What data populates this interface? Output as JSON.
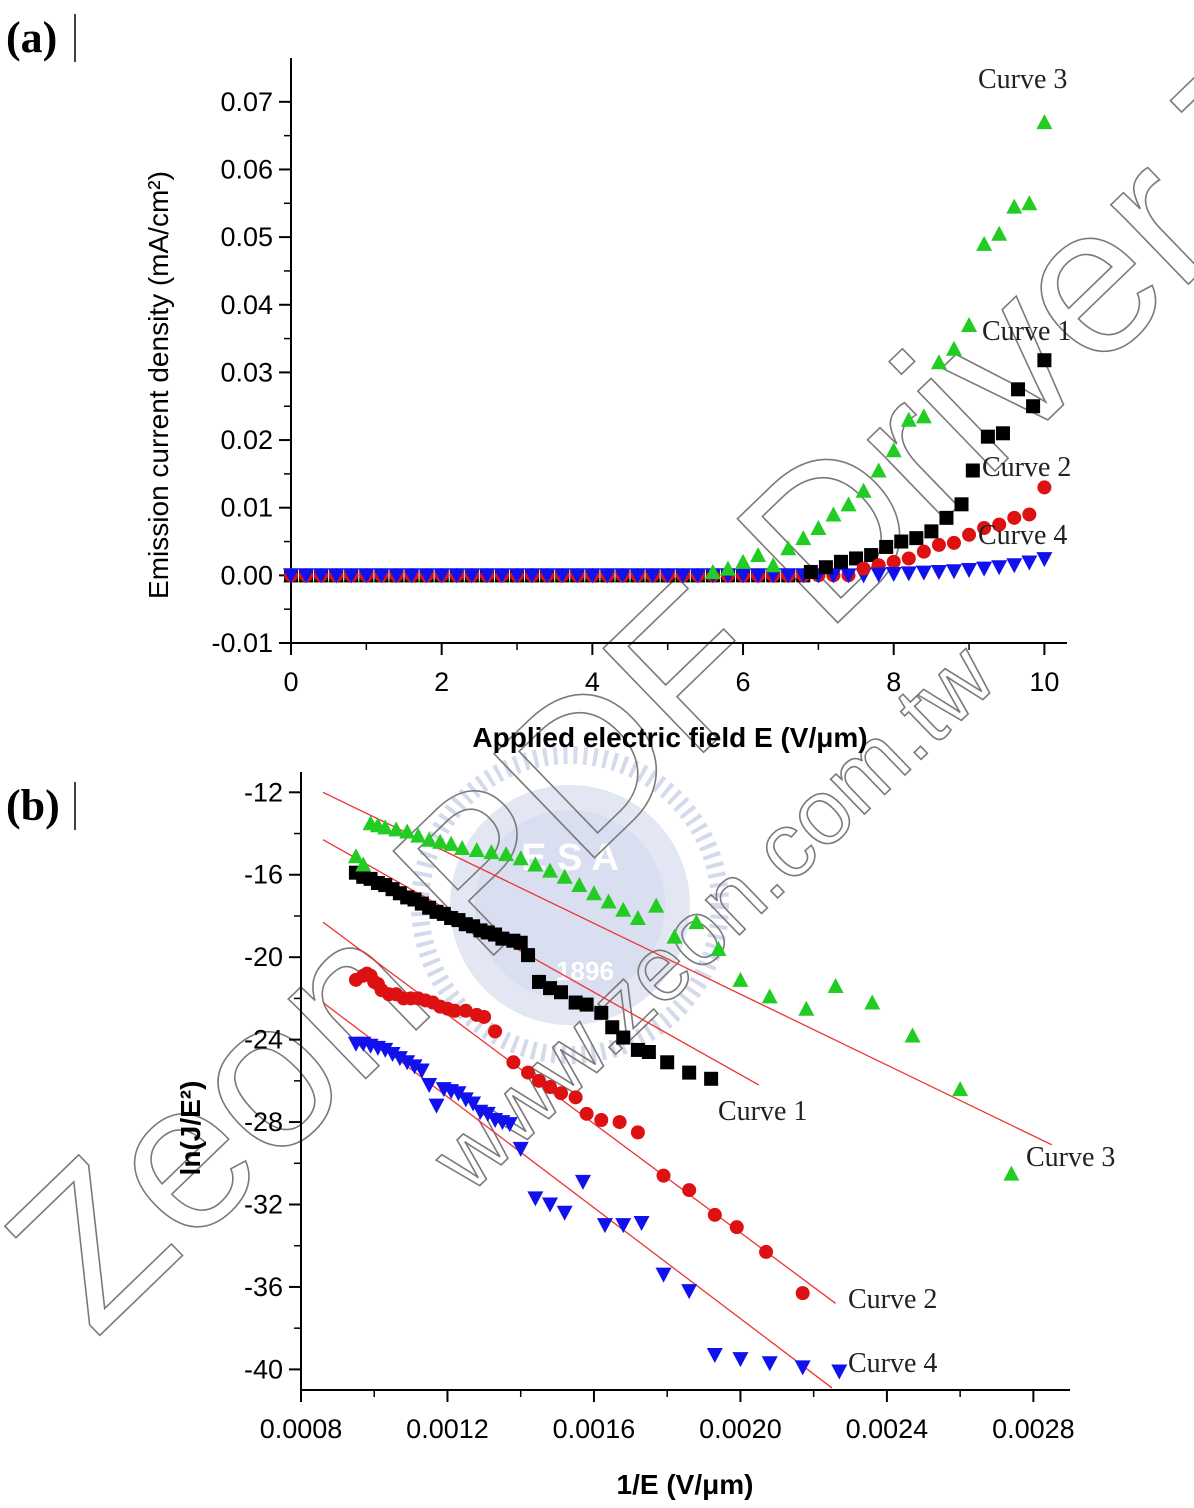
{
  "chart_data": [
    {
      "panel_label": "(a)",
      "type": "scatter",
      "xlabel": "Applied electric field E (V/μm)",
      "ylabel": "Emission current density (mA/cm²)",
      "xlim": [
        0,
        10.3
      ],
      "ylim": [
        -0.01,
        0.075
      ],
      "xticks": [
        "0",
        "2",
        "4",
        "6",
        "8",
        "10"
      ],
      "yticks": [
        "-0.01",
        "0.00",
        "0.01",
        "0.02",
        "0.03",
        "0.04",
        "0.05",
        "0.06",
        "0.07"
      ],
      "x_tick_values": [
        0,
        2,
        4,
        6,
        8,
        10
      ],
      "y_tick_values": [
        -0.01,
        0,
        0.01,
        0.02,
        0.03,
        0.04,
        0.05,
        0.06,
        0.07
      ],
      "series": [
        {
          "name": "Curve 1",
          "marker": "square",
          "color": "#000000",
          "x": [
            6.9,
            7.1,
            7.3,
            7.5,
            7.7,
            7.9,
            8.1,
            8.3,
            8.5,
            8.7,
            8.9,
            9.05,
            9.25,
            9.45,
            9.65,
            9.85,
            10.0
          ],
          "y": [
            0.0005,
            0.0012,
            0.002,
            0.0025,
            0.003,
            0.0042,
            0.005,
            0.0055,
            0.0065,
            0.0085,
            0.0105,
            0.0155,
            0.0205,
            0.021,
            0.0275,
            0.025,
            0.0318
          ]
        },
        {
          "name": "Curve 2",
          "marker": "circle",
          "color": "#dd1111",
          "x": [
            7.6,
            7.8,
            8.0,
            8.2,
            8.4,
            8.6,
            8.8,
            9.0,
            9.2,
            9.4,
            9.6,
            9.8,
            10.0
          ],
          "y": [
            0.001,
            0.0015,
            0.002,
            0.0025,
            0.0035,
            0.0045,
            0.0048,
            0.006,
            0.007,
            0.0075,
            0.0085,
            0.009,
            0.013
          ]
        },
        {
          "name": "Curve 3",
          "marker": "triangle-up",
          "color": "#22cc22",
          "x": [
            5.6,
            5.8,
            6.0,
            6.2,
            6.4,
            6.6,
            6.8,
            7.0,
            7.2,
            7.4,
            7.6,
            7.8,
            8.0,
            8.2,
            8.4,
            8.6,
            8.8,
            9.0,
            9.2,
            9.4,
            9.6,
            9.8,
            10.0
          ],
          "y": [
            0.0005,
            0.001,
            0.002,
            0.003,
            0.0015,
            0.004,
            0.0055,
            0.007,
            0.009,
            0.0105,
            0.0125,
            0.0155,
            0.0185,
            0.023,
            0.0235,
            0.0315,
            0.0335,
            0.037,
            0.049,
            0.0505,
            0.0545,
            0.055,
            0.067
          ]
        },
        {
          "name": "Curve 4",
          "marker": "triangle-down",
          "color": "#1111ee",
          "x": [
            7.8,
            8.0,
            8.2,
            8.4,
            8.6,
            8.8,
            9.0,
            9.2,
            9.4,
            9.6,
            9.8,
            10.0
          ],
          "y": [
            0.0001,
            0.0002,
            0.0003,
            0.0004,
            0.0005,
            0.0006,
            0.0008,
            0.001,
            0.0012,
            0.0015,
            0.0019,
            0.0024
          ]
        }
      ],
      "baseline_x_start": 0,
      "baseline_x_end": 10,
      "baseline_x_step": 0.2,
      "curve_labels": [
        "Curve 3",
        "Curve 1",
        "Curve 2",
        "Curve 4"
      ]
    },
    {
      "panel_label": "(b)",
      "type": "scatter",
      "xlabel": "1/E (V/μm)",
      "ylabel": "ln(J/E²)",
      "xlim": [
        0.0008,
        0.0029
      ],
      "ylim": [
        -41,
        -11.5
      ],
      "xticks": [
        "0.0008",
        "0.0012",
        "0.0016",
        "0.0020",
        "0.0024",
        "0.0028"
      ],
      "yticks": [
        "-12",
        "-16",
        "-20",
        "-24",
        "-28",
        "-32",
        "-36",
        "-40"
      ],
      "x_tick_values": [
        0.0008,
        0.0012,
        0.0016,
        0.002,
        0.0024,
        0.0028
      ],
      "y_tick_values": [
        -12,
        -16,
        -20,
        -24,
        -28,
        -32,
        -36,
        -40
      ],
      "series": [
        {
          "name": "Curve 1",
          "marker": "square",
          "color": "#000000",
          "x": [
            0.00095,
            0.00097,
            0.00099,
            0.00101,
            0.00103,
            0.00105,
            0.00107,
            0.00109,
            0.00111,
            0.00113,
            0.00115,
            0.00117,
            0.00119,
            0.00121,
            0.00123,
            0.00125,
            0.00127,
            0.00129,
            0.00131,
            0.00133,
            0.00135,
            0.00138,
            0.0014,
            0.00142,
            0.00145,
            0.00148,
            0.00151,
            0.00155,
            0.00158,
            0.00162,
            0.00165,
            0.00168,
            0.00172,
            0.00175,
            0.0018,
            0.00186,
            0.00192
          ],
          "y": [
            -15.9,
            -16.1,
            -16.2,
            -16.4,
            -16.5,
            -16.7,
            -16.9,
            -17.1,
            -17.2,
            -17.4,
            -17.6,
            -17.8,
            -17.9,
            -18.1,
            -18.2,
            -18.4,
            -18.5,
            -18.7,
            -18.8,
            -18.9,
            -19.1,
            -19.2,
            -19.3,
            -19.9,
            -21.2,
            -21.5,
            -21.7,
            -22.2,
            -22.3,
            -22.7,
            -23.4,
            -23.9,
            -24.5,
            -24.6,
            -25.1,
            -25.6,
            -25.9
          ]
        },
        {
          "name": "Curve 2",
          "marker": "circle",
          "color": "#dd1111",
          "x": [
            0.00095,
            0.00097,
            0.00098,
            0.00099,
            0.001,
            0.00101,
            0.00102,
            0.00104,
            0.00106,
            0.00108,
            0.0011,
            0.00112,
            0.00114,
            0.00116,
            0.00118,
            0.0012,
            0.00122,
            0.00125,
            0.00128,
            0.0013,
            0.00133,
            0.00138,
            0.00142,
            0.00145,
            0.00148,
            0.00151,
            0.00155,
            0.00158,
            0.00162,
            0.00167,
            0.00172,
            0.00179,
            0.00186,
            0.00193,
            0.00199,
            0.00207,
            0.00217
          ],
          "y": [
            -21.1,
            -20.9,
            -20.8,
            -20.9,
            -21.2,
            -21.3,
            -21.6,
            -21.8,
            -21.8,
            -22.0,
            -22.0,
            -22.0,
            -22.1,
            -22.2,
            -22.4,
            -22.5,
            -22.6,
            -22.6,
            -22.8,
            -22.9,
            -23.6,
            -25.1,
            -25.6,
            -26.0,
            -26.3,
            -26.6,
            -26.8,
            -27.6,
            -27.9,
            -28.0,
            -28.5,
            -30.6,
            -31.3,
            -32.5,
            -33.1,
            -34.3,
            -36.3
          ]
        },
        {
          "name": "Curve 3",
          "marker": "triangle-up",
          "color": "#22cc22",
          "x": [
            0.00095,
            0.00097,
            0.00099,
            0.00101,
            0.00103,
            0.00106,
            0.00109,
            0.00112,
            0.00115,
            0.00118,
            0.00121,
            0.00124,
            0.00128,
            0.00132,
            0.00136,
            0.0014,
            0.00144,
            0.00148,
            0.00152,
            0.00156,
            0.0016,
            0.00164,
            0.00168,
            0.00172,
            0.00177,
            0.00182,
            0.00188,
            0.00194,
            0.002,
            0.00208,
            0.00218,
            0.00226,
            0.00236,
            0.00247,
            0.0026,
            0.00274
          ],
          "y": [
            -15.1,
            -15.5,
            -13.5,
            -13.6,
            -13.7,
            -13.8,
            -13.9,
            -14.1,
            -14.3,
            -14.4,
            -14.5,
            -14.7,
            -14.8,
            -14.9,
            -15.0,
            -15.2,
            -15.5,
            -15.8,
            -16.1,
            -16.5,
            -16.9,
            -17.3,
            -17.7,
            -18.1,
            -17.5,
            -19.0,
            -18.3,
            -19.6,
            -21.1,
            -21.9,
            -22.5,
            -21.4,
            -22.2,
            -23.8,
            -26.4,
            -30.5
          ]
        },
        {
          "name": "Curve 4",
          "marker": "triangle-down",
          "color": "#1111ee",
          "x": [
            0.00095,
            0.00097,
            0.00099,
            0.00101,
            0.00103,
            0.00105,
            0.00107,
            0.00109,
            0.00111,
            0.00113,
            0.00115,
            0.00117,
            0.00119,
            0.00121,
            0.00123,
            0.00125,
            0.00127,
            0.00129,
            0.00131,
            0.00133,
            0.00135,
            0.00137,
            0.0014,
            0.00144,
            0.00148,
            0.00152,
            0.00157,
            0.00163,
            0.00168,
            0.00173,
            0.00179,
            0.00186,
            0.00193,
            0.002,
            0.00208,
            0.00217,
            0.00227
          ],
          "y": [
            -24.2,
            -24.2,
            -24.3,
            -24.4,
            -24.5,
            -24.7,
            -24.9,
            -25.1,
            -25.3,
            -25.5,
            -26.2,
            -27.2,
            -26.4,
            -26.5,
            -26.6,
            -26.9,
            -27.1,
            -27.5,
            -27.6,
            -27.9,
            -28.0,
            -28.1,
            -29.3,
            -31.7,
            -32.0,
            -32.4,
            -30.9,
            -33.0,
            -33.0,
            -32.9,
            -35.4,
            -36.2,
            -39.3,
            -39.5,
            -39.7,
            -39.9,
            -40.1
          ]
        }
      ],
      "fit_lines": [
        {
          "name": "Curve 3",
          "x": [
            0.00086,
            0.00285
          ],
          "y": [
            -12.0,
            -29.1
          ]
        },
        {
          "name": "Curve 1",
          "x": [
            0.00086,
            0.00205
          ],
          "y": [
            -14.3,
            -26.2
          ]
        },
        {
          "name": "Curve 2",
          "x": [
            0.00086,
            0.00226
          ],
          "y": [
            -18.3,
            -36.8
          ]
        },
        {
          "name": "Curve 4",
          "x": [
            0.00086,
            0.00225
          ],
          "y": [
            -22.2,
            -40.9
          ]
        }
      ],
      "fit_color": "#ee3333",
      "curve_labels": [
        "Curve 1",
        "Curve 3",
        "Curve 2",
        "Curve 4"
      ]
    }
  ],
  "watermark": {
    "main_text": "Zeon PDF Driver Trial",
    "url_text": "www.zeon.com.tw",
    "logo_text": "E S A",
    "logo_year": "1896"
  }
}
